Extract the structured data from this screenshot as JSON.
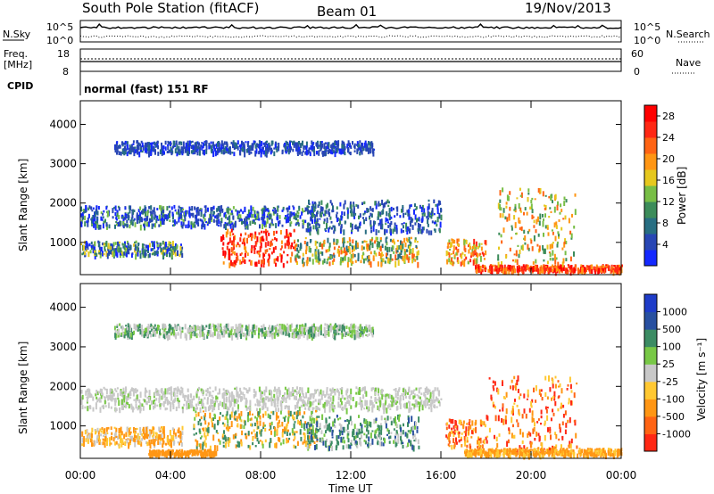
{
  "header": {
    "station": "South Pole Station (fitACF)",
    "beam": "Beam 01",
    "date": "19/Nov/2013"
  },
  "top_panels": {
    "nsky_label": "N.Sky",
    "nsky_ticks": [
      "10^5",
      "10^0"
    ],
    "nsearch_label": "N.Search",
    "freq_label": "Freq.",
    "freq_unit": "[MHz]",
    "freq_ticks": [
      "18",
      "8"
    ],
    "nave_label": "Nave",
    "nave_ticks": [
      "60",
      "0"
    ],
    "cpid_label": "CPID",
    "cpid_text": "normal (fast) 151 RF"
  },
  "axes": {
    "x_ticks": [
      "00:00",
      "04:00",
      "08:00",
      "12:00",
      "16:00",
      "20:00",
      "00:00"
    ],
    "x_label": "Time UT",
    "y_label": "Slant Range [km]",
    "y_ticks": [
      "1000",
      "2000",
      "3000",
      "4000"
    ]
  },
  "chart_data": [
    {
      "type": "heatmap",
      "title": "",
      "xlabel": "Time UT",
      "ylabel": "Slant Range [km]",
      "xlim": [
        0,
        24
      ],
      "ylim": [
        180,
        4600
      ],
      "colorbar_label": "Power [dB]",
      "colorbar_ticks": [
        "4",
        "8",
        "12",
        "16",
        "20",
        "24",
        "28"
      ],
      "colorbar_colors": [
        "#1428ff",
        "#2846b4",
        "#286e82",
        "#3c8c5a",
        "#78be46",
        "#e6c81e",
        "#ff9614",
        "#ff6414",
        "#ff2814",
        "#ff0000"
      ]
    },
    {
      "type": "heatmap",
      "title": "",
      "xlabel": "Time UT",
      "ylabel": "Slant Range [km]",
      "xlim": [
        0,
        24
      ],
      "ylim": [
        180,
        4600
      ],
      "colorbar_label": "Velocity [m s⁻¹]",
      "colorbar_ticks": [
        "1000",
        "500",
        "100",
        "25",
        "-25",
        "-100",
        "-500",
        "-1000"
      ],
      "colorbar_colors": [
        "#1e3cc8",
        "#2850a0",
        "#3c8c64",
        "#78c846",
        "#c8c8c8",
        "#ffc832",
        "#ff9614",
        "#ff6414",
        "#ff2814"
      ]
    }
  ]
}
